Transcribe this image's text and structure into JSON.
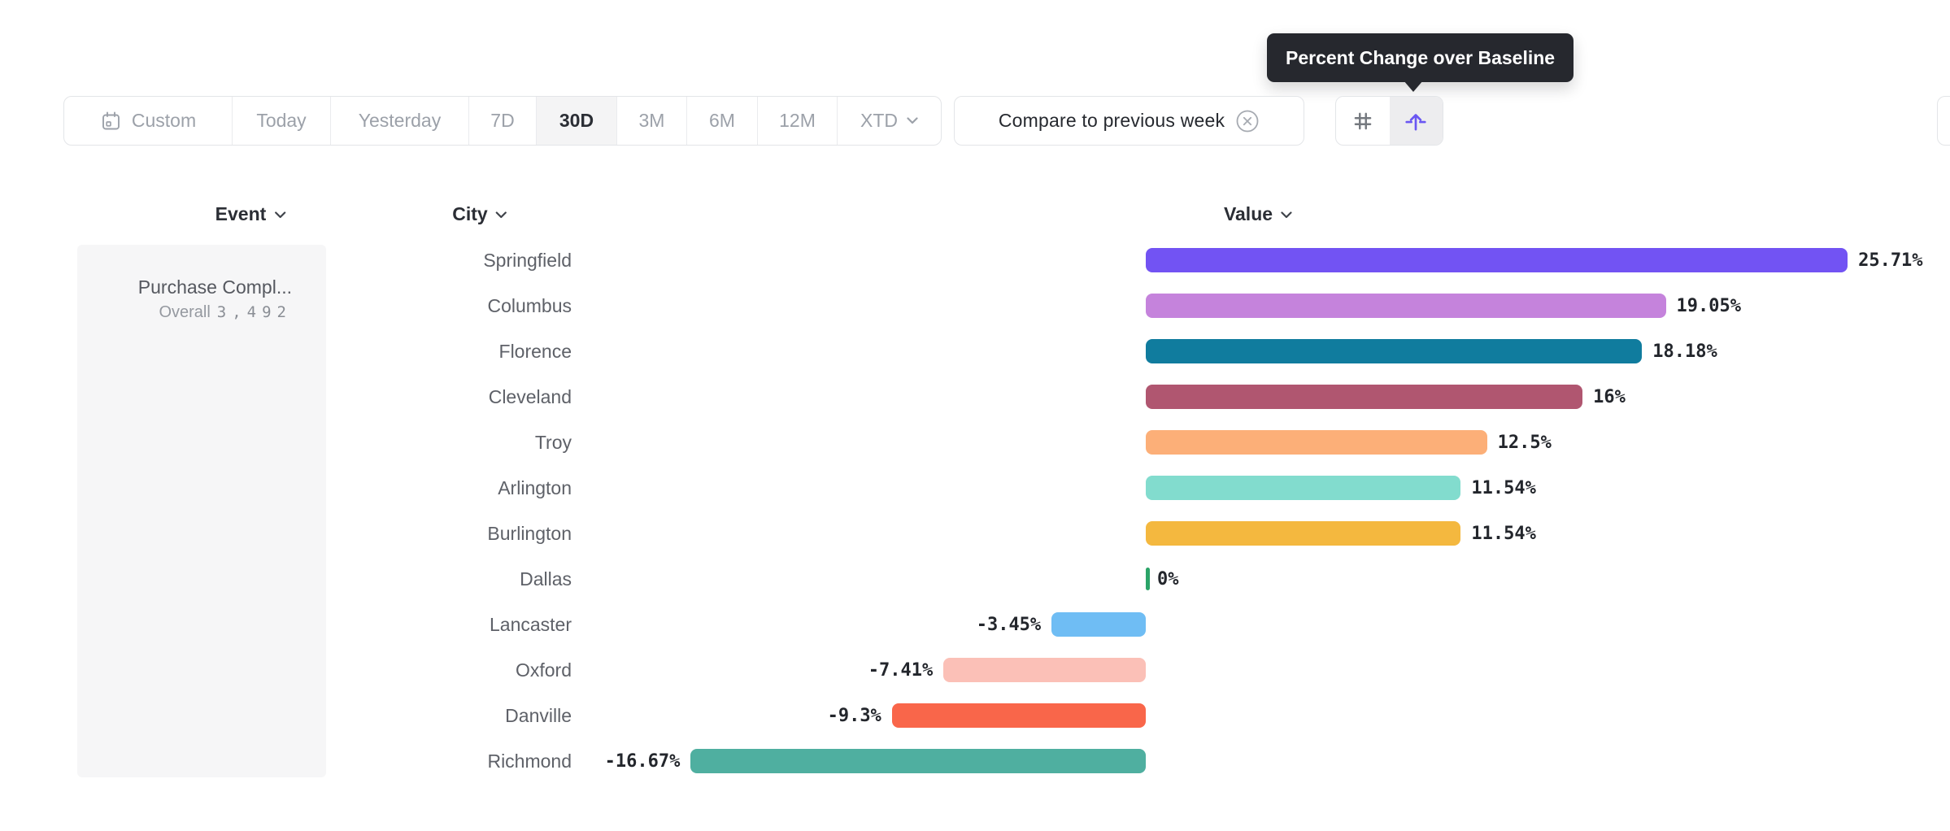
{
  "toolbar": {
    "date_ranges": [
      {
        "label": "Custom",
        "icon": "calendar"
      },
      {
        "label": "Today"
      },
      {
        "label": "Yesterday"
      },
      {
        "label": "7D"
      },
      {
        "label": "30D",
        "selected": true
      },
      {
        "label": "3M"
      },
      {
        "label": "6M"
      },
      {
        "label": "12M"
      },
      {
        "label": "XTD",
        "chevron": true
      }
    ],
    "selected_range": "30D",
    "compare_chip": {
      "label": "Compare to previous week",
      "remove_icon": "circle-x-icon"
    },
    "view_toggle": {
      "options": [
        {
          "name": "number-view",
          "icon": "hash-icon",
          "selected": false
        },
        {
          "name": "percent-change-view",
          "icon": "percent-change-icon",
          "selected": true
        }
      ],
      "accent_color": "#6A57F2"
    }
  },
  "tooltip": {
    "text": "Percent Change over Baseline",
    "background": "#26282E"
  },
  "table": {
    "columns": [
      {
        "label": "Event"
      },
      {
        "label": "City"
      },
      {
        "label": "Value"
      }
    ]
  },
  "event_panel": {
    "title": "Purchase Compl...",
    "overall_label": "Overall",
    "overall_value": "3,492"
  },
  "chart_data": {
    "type": "bar",
    "orientation": "horizontal",
    "value_format": "percent_change_over_baseline",
    "categories": [
      "Springfield",
      "Columbus",
      "Florence",
      "Cleveland",
      "Troy",
      "Arlington",
      "Burlington",
      "Dallas",
      "Lancaster",
      "Oxford",
      "Danville",
      "Richmond"
    ],
    "values": [
      25.71,
      19.05,
      18.18,
      16,
      12.5,
      11.54,
      11.54,
      0,
      -3.45,
      -7.41,
      -9.3,
      -16.67
    ],
    "value_labels": [
      "25.71%",
      "19.05%",
      "18.18%",
      "16%",
      "12.5%",
      "11.54%",
      "11.54%",
      "0%",
      "-3.45%",
      "-7.41%",
      "-9.3%",
      "-16.67%"
    ],
    "bar_colors": [
      "#7253F3",
      "#C583DC",
      "#107C9E",
      "#B05670",
      "#FCAF78",
      "#82DCCE",
      "#F4B83F",
      "#2BA468",
      "#6FBDF4",
      "#FBC0B7",
      "#F9664A",
      "#4FAFA0"
    ],
    "zero_tick_color": "#2BA468",
    "xlim": [
      -18,
      26
    ],
    "baseline": 0,
    "grid": false,
    "legend": false
  }
}
